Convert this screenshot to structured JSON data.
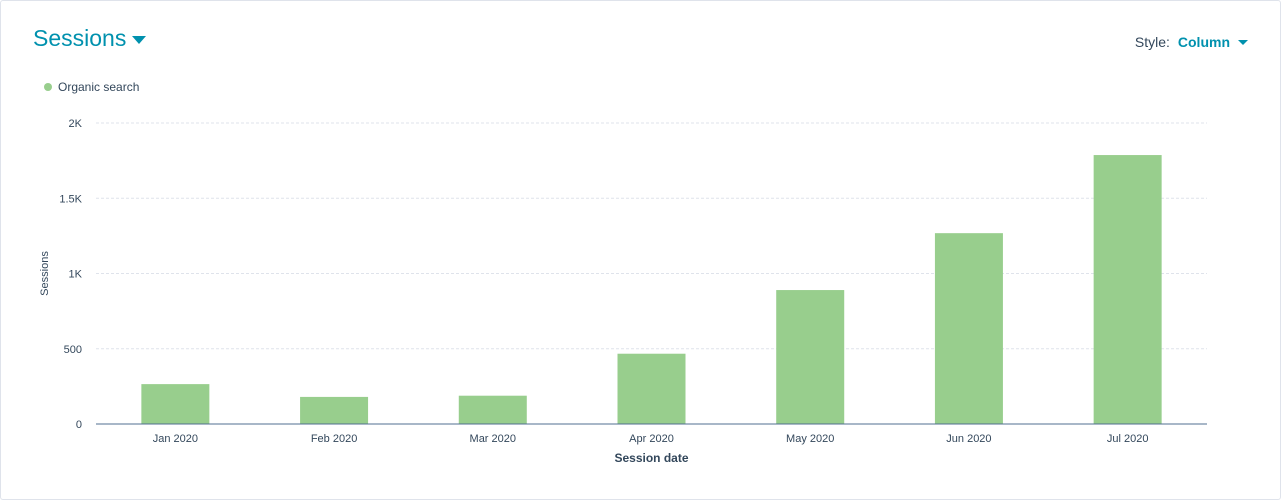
{
  "header": {
    "title": "Sessions",
    "style_label": "Style:",
    "style_value": "Column"
  },
  "colors": {
    "accent": "#0091ae",
    "bar": "#98ce8d",
    "grid": "#dfe3eb",
    "text": "#33475b"
  },
  "chart_data": {
    "type": "bar",
    "categories": [
      "Jan 2020",
      "Feb 2020",
      "Mar 2020",
      "Apr 2020",
      "May 2020",
      "Jun 2020",
      "Jul 2020"
    ],
    "series": [
      {
        "name": "Organic search",
        "values": [
          265,
          180,
          188,
          467,
          890,
          1268,
          1787
        ]
      }
    ],
    "xlabel": "Session date",
    "ylabel": "Sessions",
    "ylim": [
      0,
      2000
    ],
    "yticks": [
      0,
      500,
      1000,
      1500,
      2000
    ],
    "ytick_labels": [
      "0",
      "500",
      "1K",
      "1.5K",
      "2K"
    ],
    "grid": true,
    "legend_position": "top-left"
  }
}
